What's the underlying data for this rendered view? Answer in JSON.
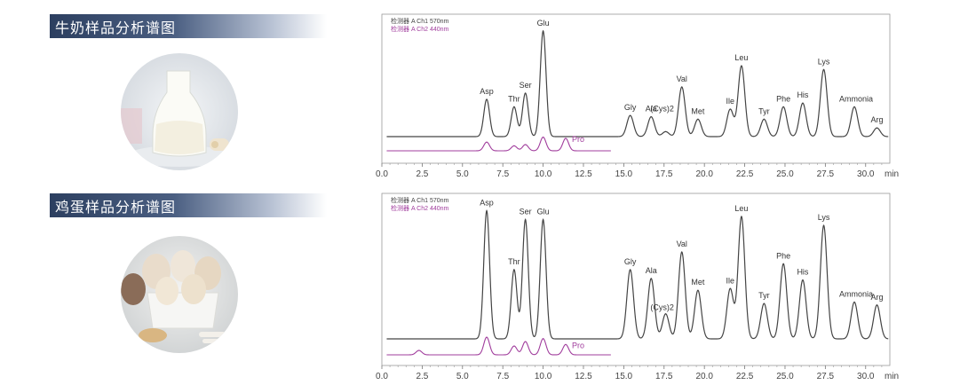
{
  "sections": [
    {
      "title": "牛奶样品分析谱图",
      "photo_icon": "milk-bottle-photo"
    },
    {
      "title": "鸡蛋样品分析谱图",
      "photo_icon": "eggs-photo"
    }
  ],
  "colors": {
    "ch1": "#444444",
    "ch2": "#a03c9c",
    "banner": "#3a4d70"
  },
  "chart_data": [
    {
      "type": "line",
      "legend": [
        "检测器 A Ch1 570nm",
        "检测器 A Ch2 440nm"
      ],
      "x_unit": "min",
      "xlim": [
        0.0,
        31.5
      ],
      "x_ticks": [
        "0.0",
        "2.5",
        "5.0",
        "7.5",
        "10.0",
        "12.5",
        "15.0",
        "17.5",
        "20.0",
        "22.5",
        "25.0",
        "27.5",
        "30.0"
      ],
      "ylim": [
        0,
        1.0
      ],
      "series": [
        {
          "name": "检测器 A Ch1 570nm",
          "peaks": [
            {
              "label": "Asp",
              "x": 6.5,
              "y": 0.3
            },
            {
              "label": "Thr",
              "x": 8.2,
              "y": 0.24
            },
            {
              "label": "Ser",
              "x": 8.9,
              "y": 0.35
            },
            {
              "label": "Glu",
              "x": 10.0,
              "y": 0.85
            },
            {
              "label": "Gly",
              "x": 15.4,
              "y": 0.17
            },
            {
              "label": "Ala",
              "x": 16.7,
              "y": 0.16
            },
            {
              "label": "(Cys)2",
              "x": 17.6,
              "y": 0.04
            },
            {
              "label": "Val",
              "x": 18.6,
              "y": 0.4
            },
            {
              "label": "Met",
              "x": 19.6,
              "y": 0.14
            },
            {
              "label": "Ile",
              "x": 21.6,
              "y": 0.22
            },
            {
              "label": "Leu",
              "x": 22.3,
              "y": 0.57
            },
            {
              "label": "Tyr",
              "x": 23.7,
              "y": 0.14
            },
            {
              "label": "Phe",
              "x": 24.9,
              "y": 0.24
            },
            {
              "label": "His",
              "x": 26.1,
              "y": 0.27
            },
            {
              "label": "Lys",
              "x": 27.4,
              "y": 0.54
            },
            {
              "label": "Ammonia",
              "x": 29.3,
              "y": 0.24
            },
            {
              "label": "Arg",
              "x": 30.7,
              "y": 0.07
            }
          ]
        },
        {
          "name": "检测器 A Ch2 440nm",
          "peaks": [
            {
              "label": "",
              "x": 6.5,
              "y": 0.07
            },
            {
              "label": "",
              "x": 8.2,
              "y": 0.04
            },
            {
              "label": "",
              "x": 8.9,
              "y": 0.05
            },
            {
              "label": "",
              "x": 10.0,
              "y": 0.11
            },
            {
              "label": "Pro",
              "x": 11.4,
              "y": 0.1
            }
          ]
        }
      ]
    },
    {
      "type": "line",
      "legend": [
        "检测器 A Ch1 570nm",
        "检测器 A Ch2 440nm"
      ],
      "x_unit": "min",
      "xlim": [
        0.0,
        31.5
      ],
      "x_ticks": [
        "0.0",
        "2.5",
        "5.0",
        "7.5",
        "10.0",
        "12.5",
        "15.0",
        "17.5",
        "20.0",
        "22.5",
        "25.0",
        "27.5",
        "30.0"
      ],
      "ylim": [
        0,
        1.0
      ],
      "series": [
        {
          "name": "检测器 A Ch1 570nm",
          "peaks": [
            {
              "label": "Asp",
              "x": 6.5,
              "y": 0.87
            },
            {
              "label": "Thr",
              "x": 8.2,
              "y": 0.47
            },
            {
              "label": "Ser",
              "x": 8.9,
              "y": 0.81
            },
            {
              "label": "Glu",
              "x": 10.0,
              "y": 0.81
            },
            {
              "label": "Gly",
              "x": 15.4,
              "y": 0.47
            },
            {
              "label": "Ala",
              "x": 16.7,
              "y": 0.41
            },
            {
              "label": "(Cys)2",
              "x": 17.6,
              "y": 0.17
            },
            {
              "label": "Val",
              "x": 18.6,
              "y": 0.59
            },
            {
              "label": "Met",
              "x": 19.6,
              "y": 0.33
            },
            {
              "label": "Ile",
              "x": 21.6,
              "y": 0.34
            },
            {
              "label": "Leu",
              "x": 22.3,
              "y": 0.83
            },
            {
              "label": "Tyr",
              "x": 23.7,
              "y": 0.24
            },
            {
              "label": "Phe",
              "x": 24.9,
              "y": 0.51
            },
            {
              "label": "His",
              "x": 26.1,
              "y": 0.4
            },
            {
              "label": "Lys",
              "x": 27.4,
              "y": 0.77
            },
            {
              "label": "Ammonia",
              "x": 29.3,
              "y": 0.25
            },
            {
              "label": "Arg",
              "x": 30.7,
              "y": 0.23
            }
          ]
        },
        {
          "name": "检测器 A Ch2 440nm",
          "peaks": [
            {
              "label": "",
              "x": 2.3,
              "y": 0.03
            },
            {
              "label": "",
              "x": 6.5,
              "y": 0.12
            },
            {
              "label": "",
              "x": 8.2,
              "y": 0.06
            },
            {
              "label": "",
              "x": 8.9,
              "y": 0.09
            },
            {
              "label": "",
              "x": 10.0,
              "y": 0.11
            },
            {
              "label": "Pro",
              "x": 11.4,
              "y": 0.07
            }
          ]
        }
      ]
    }
  ]
}
